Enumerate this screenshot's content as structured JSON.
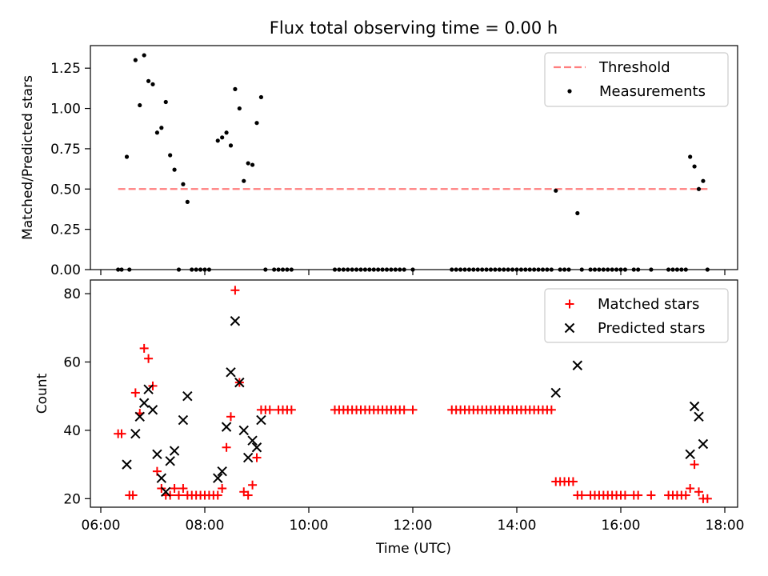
{
  "chart_data": [
    {
      "type": "scatter",
      "title": "Flux total observing time = 0.00 h",
      "ylabel": "Matched/Predicted stars",
      "xlabel": "",
      "xlim": [
        "06:00",
        "18:00"
      ],
      "ylim": [
        0,
        1.39
      ],
      "yticks": [
        "0.00",
        "0.25",
        "0.50",
        "0.75",
        "1.00",
        "1.25"
      ],
      "legend_position": "top-right",
      "threshold": {
        "name": "Threshold",
        "value": 0.5,
        "x_range": [
          "06:20",
          "17:40"
        ],
        "color": "#ff7f7f"
      },
      "series": [
        {
          "name": "Measurements",
          "marker": "dot",
          "color": "#000000",
          "points": [
            [
              "06:20",
              0
            ],
            [
              "06:24",
              0
            ],
            [
              "06:30",
              0.7
            ],
            [
              "06:33",
              0
            ],
            [
              "06:40",
              1.3
            ],
            [
              "06:45",
              1.02
            ],
            [
              "06:50",
              1.33
            ],
            [
              "06:55",
              1.17
            ],
            [
              "07:00",
              1.15
            ],
            [
              "07:05",
              0.85
            ],
            [
              "07:10",
              0.88
            ],
            [
              "07:15",
              1.04
            ],
            [
              "07:20",
              0.71
            ],
            [
              "07:25",
              0.62
            ],
            [
              "07:30",
              0
            ],
            [
              "07:35",
              0.53
            ],
            [
              "07:40",
              0.42
            ],
            [
              "07:45",
              0
            ],
            [
              "07:50",
              0
            ],
            [
              "07:55",
              0
            ],
            [
              "08:00",
              0
            ],
            [
              "08:05",
              0
            ],
            [
              "08:15",
              0.8
            ],
            [
              "08:20",
              0.82
            ],
            [
              "08:25",
              0.85
            ],
            [
              "08:30",
              0.77
            ],
            [
              "08:35",
              1.12
            ],
            [
              "08:40",
              1.0
            ],
            [
              "08:45",
              0.55
            ],
            [
              "08:50",
              0.66
            ],
            [
              "08:55",
              0.65
            ],
            [
              "09:00",
              0.91
            ],
            [
              "09:05",
              1.07
            ],
            [
              "09:10",
              0
            ],
            [
              "09:20",
              0
            ],
            [
              "09:25",
              0
            ],
            [
              "09:30",
              0
            ],
            [
              "09:35",
              0
            ],
            [
              "09:40",
              0
            ],
            [
              "10:30",
              0
            ],
            [
              "10:35",
              0
            ],
            [
              "10:40",
              0
            ],
            [
              "10:45",
              0
            ],
            [
              "10:50",
              0
            ],
            [
              "10:55",
              0
            ],
            [
              "11:00",
              0
            ],
            [
              "11:05",
              0
            ],
            [
              "11:10",
              0
            ],
            [
              "11:15",
              0
            ],
            [
              "11:20",
              0
            ],
            [
              "11:25",
              0
            ],
            [
              "11:30",
              0
            ],
            [
              "11:35",
              0
            ],
            [
              "11:40",
              0
            ],
            [
              "11:45",
              0
            ],
            [
              "11:50",
              0
            ],
            [
              "12:00",
              0
            ],
            [
              "12:45",
              0
            ],
            [
              "12:50",
              0
            ],
            [
              "12:55",
              0
            ],
            [
              "13:00",
              0
            ],
            [
              "13:05",
              0
            ],
            [
              "13:10",
              0
            ],
            [
              "13:15",
              0
            ],
            [
              "13:20",
              0
            ],
            [
              "13:25",
              0
            ],
            [
              "13:30",
              0
            ],
            [
              "13:35",
              0
            ],
            [
              "13:40",
              0
            ],
            [
              "13:45",
              0
            ],
            [
              "13:50",
              0
            ],
            [
              "13:55",
              0
            ],
            [
              "14:00",
              0
            ],
            [
              "14:05",
              0
            ],
            [
              "14:10",
              0
            ],
            [
              "14:15",
              0
            ],
            [
              "14:20",
              0
            ],
            [
              "14:25",
              0
            ],
            [
              "14:30",
              0
            ],
            [
              "14:35",
              0
            ],
            [
              "14:40",
              0
            ],
            [
              "14:45",
              0.49
            ],
            [
              "14:50",
              0
            ],
            [
              "14:55",
              0
            ],
            [
              "15:00",
              0
            ],
            [
              "15:10",
              0.35
            ],
            [
              "15:15",
              0
            ],
            [
              "15:25",
              0
            ],
            [
              "15:30",
              0
            ],
            [
              "15:35",
              0
            ],
            [
              "15:40",
              0
            ],
            [
              "15:45",
              0
            ],
            [
              "15:50",
              0
            ],
            [
              "15:55",
              0
            ],
            [
              "16:00",
              0
            ],
            [
              "16:05",
              0
            ],
            [
              "16:15",
              0
            ],
            [
              "16:20",
              0
            ],
            [
              "16:35",
              0
            ],
            [
              "16:55",
              0
            ],
            [
              "17:00",
              0
            ],
            [
              "17:05",
              0
            ],
            [
              "17:10",
              0
            ],
            [
              "17:15",
              0
            ],
            [
              "17:20",
              0.7
            ],
            [
              "17:25",
              0.64
            ],
            [
              "17:30",
              0.5
            ],
            [
              "17:35",
              0.55
            ],
            [
              "17:40",
              0
            ]
          ]
        }
      ]
    },
    {
      "type": "scatter",
      "title": "",
      "ylabel": "Count",
      "xlabel": "Time (UTC)",
      "xlim": [
        "06:00",
        "18:00"
      ],
      "ylim": [
        17.5,
        84
      ],
      "xticks": [
        "06:00",
        "08:00",
        "10:00",
        "12:00",
        "14:00",
        "16:00",
        "18:00"
      ],
      "yticks": [
        "20",
        "40",
        "60",
        "80"
      ],
      "legend_position": "top-right",
      "series": [
        {
          "name": "Matched stars",
          "marker": "plus",
          "color": "#ff0000",
          "points": [
            [
              "06:20",
              39
            ],
            [
              "06:24",
              39
            ],
            [
              "06:33",
              21
            ],
            [
              "06:37",
              21
            ],
            [
              "06:40",
              51
            ],
            [
              "06:45",
              45
            ],
            [
              "06:50",
              64
            ],
            [
              "06:55",
              61
            ],
            [
              "07:00",
              53
            ],
            [
              "07:05",
              28
            ],
            [
              "07:10",
              23
            ],
            [
              "07:15",
              21
            ],
            [
              "07:20",
              21
            ],
            [
              "07:25",
              23
            ],
            [
              "07:30",
              21
            ],
            [
              "07:35",
              23
            ],
            [
              "07:40",
              21
            ],
            [
              "07:45",
              21
            ],
            [
              "07:50",
              21
            ],
            [
              "07:55",
              21
            ],
            [
              "08:00",
              21
            ],
            [
              "08:05",
              21
            ],
            [
              "08:10",
              21
            ],
            [
              "08:15",
              21
            ],
            [
              "08:20",
              23
            ],
            [
              "08:25",
              35
            ],
            [
              "08:30",
              44
            ],
            [
              "08:35",
              81
            ],
            [
              "08:40",
              54
            ],
            [
              "08:45",
              22
            ],
            [
              "08:50",
              21
            ],
            [
              "08:55",
              24
            ],
            [
              "09:00",
              32
            ],
            [
              "09:05",
              46
            ],
            [
              "09:10",
              46
            ],
            [
              "09:15",
              46
            ],
            [
              "09:25",
              46
            ],
            [
              "09:30",
              46
            ],
            [
              "09:35",
              46
            ],
            [
              "09:40",
              46
            ],
            [
              "10:30",
              46
            ],
            [
              "10:35",
              46
            ],
            [
              "10:40",
              46
            ],
            [
              "10:45",
              46
            ],
            [
              "10:50",
              46
            ],
            [
              "10:55",
              46
            ],
            [
              "11:00",
              46
            ],
            [
              "11:05",
              46
            ],
            [
              "11:10",
              46
            ],
            [
              "11:15",
              46
            ],
            [
              "11:20",
              46
            ],
            [
              "11:25",
              46
            ],
            [
              "11:30",
              46
            ],
            [
              "11:35",
              46
            ],
            [
              "11:40",
              46
            ],
            [
              "11:45",
              46
            ],
            [
              "11:50",
              46
            ],
            [
              "12:00",
              46
            ],
            [
              "12:45",
              46
            ],
            [
              "12:50",
              46
            ],
            [
              "12:55",
              46
            ],
            [
              "13:00",
              46
            ],
            [
              "13:05",
              46
            ],
            [
              "13:10",
              46
            ],
            [
              "13:15",
              46
            ],
            [
              "13:20",
              46
            ],
            [
              "13:25",
              46
            ],
            [
              "13:30",
              46
            ],
            [
              "13:35",
              46
            ],
            [
              "13:40",
              46
            ],
            [
              "13:45",
              46
            ],
            [
              "13:50",
              46
            ],
            [
              "13:55",
              46
            ],
            [
              "14:00",
              46
            ],
            [
              "14:05",
              46
            ],
            [
              "14:10",
              46
            ],
            [
              "14:15",
              46
            ],
            [
              "14:20",
              46
            ],
            [
              "14:25",
              46
            ],
            [
              "14:30",
              46
            ],
            [
              "14:35",
              46
            ],
            [
              "14:40",
              46
            ],
            [
              "14:45",
              25
            ],
            [
              "14:50",
              25
            ],
            [
              "14:55",
              25
            ],
            [
              "15:00",
              25
            ],
            [
              "15:05",
              25
            ],
            [
              "15:10",
              21
            ],
            [
              "15:15",
              21
            ],
            [
              "15:25",
              21
            ],
            [
              "15:30",
              21
            ],
            [
              "15:35",
              21
            ],
            [
              "15:40",
              21
            ],
            [
              "15:45",
              21
            ],
            [
              "15:50",
              21
            ],
            [
              "15:55",
              21
            ],
            [
              "16:00",
              21
            ],
            [
              "16:05",
              21
            ],
            [
              "16:15",
              21
            ],
            [
              "16:20",
              21
            ],
            [
              "16:35",
              21
            ],
            [
              "16:55",
              21
            ],
            [
              "17:00",
              21
            ],
            [
              "17:05",
              21
            ],
            [
              "17:10",
              21
            ],
            [
              "17:15",
              21
            ],
            [
              "17:20",
              23
            ],
            [
              "17:25",
              30
            ],
            [
              "17:30",
              22
            ],
            [
              "17:35",
              20
            ],
            [
              "17:40",
              20
            ]
          ]
        },
        {
          "name": "Predicted stars",
          "marker": "x",
          "color": "#000000",
          "points": [
            [
              "06:30",
              30
            ],
            [
              "06:40",
              39
            ],
            [
              "06:45",
              44
            ],
            [
              "06:50",
              48
            ],
            [
              "06:55",
              52
            ],
            [
              "07:00",
              46
            ],
            [
              "07:05",
              33
            ],
            [
              "07:10",
              26
            ],
            [
              "07:15",
              22
            ],
            [
              "07:20",
              31
            ],
            [
              "07:25",
              34
            ],
            [
              "07:35",
              43
            ],
            [
              "07:40",
              50
            ],
            [
              "08:15",
              26
            ],
            [
              "08:20",
              28
            ],
            [
              "08:25",
              41
            ],
            [
              "08:30",
              57
            ],
            [
              "08:35",
              72
            ],
            [
              "08:40",
              54
            ],
            [
              "08:45",
              40
            ],
            [
              "08:50",
              32
            ],
            [
              "08:55",
              37
            ],
            [
              "09:00",
              35
            ],
            [
              "09:05",
              43
            ],
            [
              "14:45",
              51
            ],
            [
              "15:10",
              59
            ],
            [
              "17:20",
              33
            ],
            [
              "17:25",
              47
            ],
            [
              "17:30",
              44
            ],
            [
              "17:35",
              36
            ]
          ]
        }
      ]
    }
  ]
}
